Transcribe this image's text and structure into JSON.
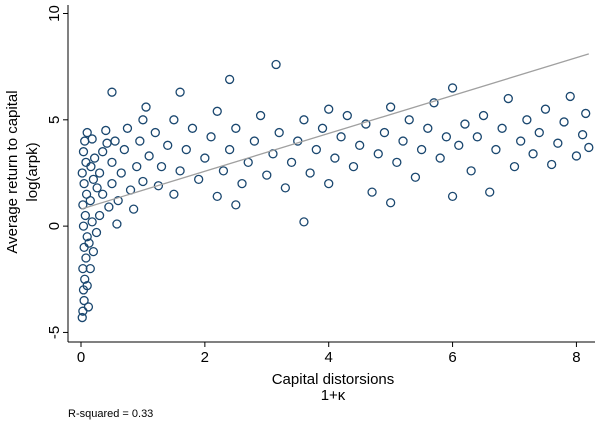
{
  "chart_data": {
    "type": "scatter",
    "x_label": [
      "Capital distorsions",
      "1+κ"
    ],
    "y_label": [
      "Average return to capital",
      "log(arpk)"
    ],
    "note": "R-squared = 0.33",
    "xlim": [
      -0.21,
      8.3
    ],
    "ylim": [
      -5.45,
      10.4
    ],
    "xticks": [
      0,
      2,
      4,
      6,
      8
    ],
    "yticks": [
      -5,
      0,
      5,
      10
    ],
    "series": [
      {
        "type": "scatter",
        "color": "#1a476f",
        "x": [
          0.02,
          0.03,
          0.05,
          0.04,
          0.06,
          0.03,
          0.08,
          0.05,
          0.1,
          0.04,
          0.07,
          0.03,
          0.09,
          0.05,
          0.02,
          0.08,
          0.04,
          0.06,
          0.1,
          0.15,
          0.2,
          0.18,
          0.25,
          0.15,
          0.2,
          0.22,
          0.18,
          0.3,
          0.35,
          0.3,
          0.35,
          0.4,
          0.45,
          0.5,
          0.5,
          0.55,
          0.6,
          0.65,
          0.7,
          0.75,
          0.8,
          0.9,
          0.95,
          1.0,
          1.0,
          1.1,
          1.2,
          1.25,
          1.3,
          1.4,
          1.5,
          1.5,
          1.6,
          1.7,
          1.8,
          1.9,
          2.0,
          2.1,
          2.2,
          2.2,
          2.3,
          2.4,
          2.5,
          2.5,
          2.6,
          2.7,
          2.8,
          2.9,
          3.0,
          3.1,
          3.2,
          3.15,
          3.3,
          3.4,
          3.5,
          3.6,
          3.6,
          3.7,
          3.8,
          3.9,
          4.0,
          4.0,
          4.1,
          4.2,
          4.3,
          4.4,
          4.5,
          4.6,
          4.7,
          4.8,
          4.9,
          5.0,
          5.0,
          5.1,
          5.2,
          5.3,
          5.4,
          5.5,
          5.6,
          5.7,
          5.8,
          5.9,
          6.0,
          6.0,
          6.1,
          6.2,
          6.3,
          6.4,
          6.5,
          6.6,
          6.7,
          6.8,
          6.9,
          7.0,
          7.1,
          7.2,
          7.3,
          7.4,
          7.5,
          7.6,
          7.7,
          7.8,
          7.9,
          8.0,
          8.1,
          8.15,
          8.2,
          0.12,
          0.1,
          0.13,
          0.16,
          0.26,
          0.42,
          0.58,
          0.85,
          1.05,
          2.4,
          1.6,
          0.5
        ],
        "y": [
          -4.3,
          -4.0,
          -3.5,
          -3.0,
          -2.5,
          -2.0,
          -1.5,
          -1.0,
          -0.5,
          0,
          0.5,
          1,
          1.5,
          2,
          2.5,
          3,
          3.5,
          4,
          4.4,
          -2,
          -1.2,
          0.2,
          -0.3,
          1.2,
          2.2,
          3.2,
          4.1,
          0.5,
          1.5,
          2.5,
          3.5,
          4.5,
          0.9,
          2,
          3,
          4,
          1.2,
          2.5,
          3.6,
          4.6,
          1.7,
          2.8,
          4,
          5,
          2.1,
          3.3,
          4.4,
          1.9,
          2.8,
          3.8,
          5,
          1.5,
          2.6,
          3.6,
          4.6,
          2.2,
          3.2,
          4.2,
          5.4,
          1.4,
          2.6,
          3.6,
          4.6,
          1.0,
          2.0,
          3,
          4,
          5.2,
          2.4,
          3.4,
          4.4,
          7.6,
          1.8,
          3,
          4,
          5,
          0.2,
          2.5,
          3.6,
          4.6,
          5.5,
          2,
          3.2,
          4.2,
          5.2,
          2.8,
          3.8,
          4.8,
          1.6,
          3.4,
          4.4,
          5.6,
          1.1,
          3,
          4,
          5,
          2.3,
          3.6,
          4.6,
          5.8,
          3.2,
          4.2,
          6.5,
          1.4,
          3.8,
          4.8,
          2.6,
          4.2,
          5.2,
          1.6,
          3.6,
          4.6,
          6,
          2.8,
          4,
          5,
          3.4,
          4.4,
          5.5,
          2.9,
          3.9,
          4.9,
          6.1,
          3.3,
          4.3,
          5.3,
          3.7,
          -3.8,
          -2.8,
          -0.8,
          2.8,
          1.8,
          3.9,
          0.1,
          0.8,
          5.6,
          6.9,
          6.3,
          6.3
        ]
      },
      {
        "type": "line",
        "color": "#a0a0a0",
        "x": [
          0,
          8.2
        ],
        "y": [
          0.8,
          8.1
        ]
      }
    ]
  }
}
